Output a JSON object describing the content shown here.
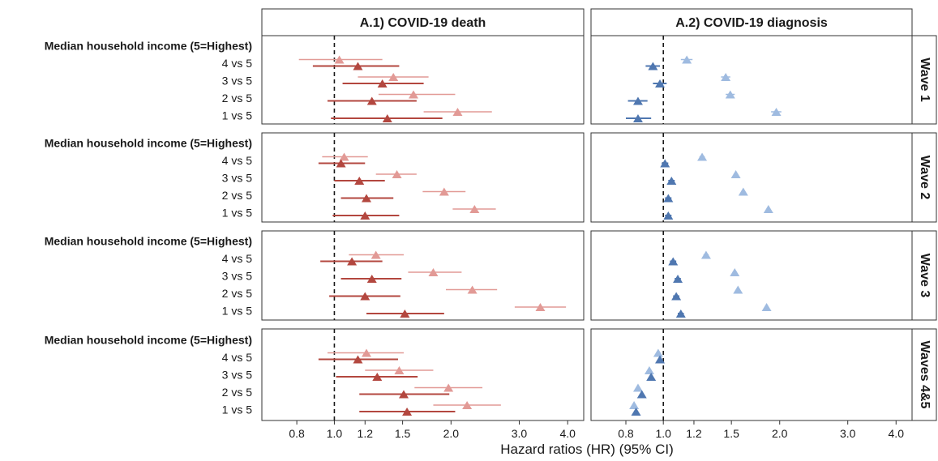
{
  "chart_data": {
    "type": "scatter",
    "subtype": "forest-plot",
    "xlabel": "Hazard ratios (HR) (95% CI)",
    "x_scale": "log",
    "xlim": [
      0.65,
      4.4
    ],
    "x_ticks": [
      0.8,
      1.0,
      1.2,
      1.5,
      2.0,
      3.0,
      4.0
    ],
    "x_tick_labels": [
      "0.8",
      "1.0",
      "1.2",
      "1.5",
      "2.0",
      "3.0",
      "4.0"
    ],
    "reference_line": 1.0,
    "grid": false,
    "legend": "none",
    "columns": [
      "A.1) COVID-19 death",
      "A.2) COVID-19 diagnosis"
    ],
    "rows": [
      "Wave 1",
      "Wave 2",
      "Wave 3",
      "Waves 4&5"
    ],
    "row_labels": [
      "Median household income (5=Highest)",
      "4 vs 5",
      "3 vs 5",
      "2 vs 5",
      "1 vs 5"
    ],
    "colors": {
      "death_light": "#e29a96",
      "death_dark": "#b3473f",
      "diagnosis_light": "#9fbbe0",
      "diagnosis_dark": "#4f77b0"
    },
    "panels": [
      {
        "column": "A.1) COVID-19 death",
        "row": "Wave 1",
        "series": [
          {
            "shade": "light",
            "points": [
              {
                "category": "4 vs 5",
                "hr": 1.03,
                "lo": 0.81,
                "hi": 1.33
              },
              {
                "category": "3 vs 5",
                "hr": 1.42,
                "lo": 1.15,
                "hi": 1.75
              },
              {
                "category": "2 vs 5",
                "hr": 1.6,
                "lo": 1.3,
                "hi": 2.05
              },
              {
                "category": "1 vs 5",
                "hr": 2.08,
                "lo": 1.7,
                "hi": 2.55
              }
            ]
          },
          {
            "shade": "dark",
            "points": [
              {
                "category": "4 vs 5",
                "hr": 1.15,
                "lo": 0.88,
                "hi": 1.47
              },
              {
                "category": "3 vs 5",
                "hr": 1.33,
                "lo": 1.05,
                "hi": 1.7
              },
              {
                "category": "2 vs 5",
                "hr": 1.25,
                "lo": 0.96,
                "hi": 1.63
              },
              {
                "category": "1 vs 5",
                "hr": 1.37,
                "lo": 0.98,
                "hi": 1.9
              }
            ]
          }
        ]
      },
      {
        "column": "A.2) COVID-19 diagnosis",
        "row": "Wave 1",
        "series": [
          {
            "shade": "light",
            "points": [
              {
                "category": "4 vs 5",
                "hr": 1.15,
                "lo": 1.11,
                "hi": 1.19
              },
              {
                "category": "3 vs 5",
                "hr": 1.45,
                "lo": 1.41,
                "hi": 1.49
              },
              {
                "category": "2 vs 5",
                "hr": 1.49,
                "lo": 1.45,
                "hi": 1.53
              },
              {
                "category": "1 vs 5",
                "hr": 1.96,
                "lo": 1.9,
                "hi": 2.02
              }
            ]
          },
          {
            "shade": "dark",
            "points": [
              {
                "category": "4 vs 5",
                "hr": 0.94,
                "lo": 0.9,
                "hi": 0.98
              },
              {
                "category": "3 vs 5",
                "hr": 0.98,
                "lo": 0.94,
                "hi": 1.02
              },
              {
                "category": "2 vs 5",
                "hr": 0.86,
                "lo": 0.81,
                "hi": 0.91
              },
              {
                "category": "1 vs 5",
                "hr": 0.86,
                "lo": 0.8,
                "hi": 0.93
              }
            ]
          }
        ]
      },
      {
        "column": "A.1) COVID-19 death",
        "row": "Wave 2",
        "series": [
          {
            "shade": "light",
            "points": [
              {
                "category": "4 vs 5",
                "hr": 1.06,
                "lo": 0.93,
                "hi": 1.22
              },
              {
                "category": "3 vs 5",
                "hr": 1.45,
                "lo": 1.28,
                "hi": 1.63
              },
              {
                "category": "2 vs 5",
                "hr": 1.92,
                "lo": 1.69,
                "hi": 2.18
              },
              {
                "category": "1 vs 5",
                "hr": 2.3,
                "lo": 2.02,
                "hi": 2.61
              }
            ]
          },
          {
            "shade": "dark",
            "points": [
              {
                "category": "4 vs 5",
                "hr": 1.04,
                "lo": 0.91,
                "hi": 1.2
              },
              {
                "category": "3 vs 5",
                "hr": 1.16,
                "lo": 1.0,
                "hi": 1.35
              },
              {
                "category": "2 vs 5",
                "hr": 1.21,
                "lo": 1.04,
                "hi": 1.42
              },
              {
                "category": "1 vs 5",
                "hr": 1.2,
                "lo": 0.99,
                "hi": 1.47
              }
            ]
          }
        ]
      },
      {
        "column": "A.2) COVID-19 diagnosis",
        "row": "Wave 2",
        "series": [
          {
            "shade": "light",
            "points": [
              {
                "category": "4 vs 5",
                "hr": 1.26,
                "lo": 1.24,
                "hi": 1.28
              },
              {
                "category": "3 vs 5",
                "hr": 1.54,
                "lo": 1.52,
                "hi": 1.56
              },
              {
                "category": "2 vs 5",
                "hr": 1.61,
                "lo": 1.59,
                "hi": 1.63
              },
              {
                "category": "1 vs 5",
                "hr": 1.87,
                "lo": 1.85,
                "hi": 1.89
              }
            ]
          },
          {
            "shade": "dark",
            "points": [
              {
                "category": "4 vs 5",
                "hr": 1.01,
                "lo": 0.99,
                "hi": 1.03
              },
              {
                "category": "3 vs 5",
                "hr": 1.05,
                "lo": 1.03,
                "hi": 1.07
              },
              {
                "category": "2 vs 5",
                "hr": 1.03,
                "lo": 1.01,
                "hi": 1.05
              },
              {
                "category": "1 vs 5",
                "hr": 1.03,
                "lo": 1.01,
                "hi": 1.05
              }
            ]
          }
        ]
      },
      {
        "column": "A.1) COVID-19 death",
        "row": "Wave 3",
        "series": [
          {
            "shade": "light",
            "points": [
              {
                "category": "4 vs 5",
                "hr": 1.28,
                "lo": 1.09,
                "hi": 1.51
              },
              {
                "category": "3 vs 5",
                "hr": 1.8,
                "lo": 1.55,
                "hi": 2.13
              },
              {
                "category": "2 vs 5",
                "hr": 2.27,
                "lo": 1.94,
                "hi": 2.63
              },
              {
                "category": "1 vs 5",
                "hr": 3.4,
                "lo": 2.92,
                "hi": 3.96
              }
            ]
          },
          {
            "shade": "dark",
            "points": [
              {
                "category": "4 vs 5",
                "hr": 1.11,
                "lo": 0.92,
                "hi": 1.33
              },
              {
                "category": "3 vs 5",
                "hr": 1.25,
                "lo": 1.04,
                "hi": 1.49
              },
              {
                "category": "2 vs 5",
                "hr": 1.2,
                "lo": 0.97,
                "hi": 1.48
              },
              {
                "category": "1 vs 5",
                "hr": 1.52,
                "lo": 1.21,
                "hi": 1.92
              }
            ]
          }
        ]
      },
      {
        "column": "A.2) COVID-19 diagnosis",
        "row": "Wave 3",
        "series": [
          {
            "shade": "light",
            "points": [
              {
                "category": "4 vs 5",
                "hr": 1.29,
                "lo": 1.27,
                "hi": 1.31
              },
              {
                "category": "3 vs 5",
                "hr": 1.53,
                "lo": 1.51,
                "hi": 1.55
              },
              {
                "category": "2 vs 5",
                "hr": 1.56,
                "lo": 1.54,
                "hi": 1.58
              },
              {
                "category": "1 vs 5",
                "hr": 1.85,
                "lo": 1.83,
                "hi": 1.87
              }
            ]
          },
          {
            "shade": "dark",
            "points": [
              {
                "category": "4 vs 5",
                "hr": 1.06,
                "lo": 1.04,
                "hi": 1.08
              },
              {
                "category": "3 vs 5",
                "hr": 1.09,
                "lo": 1.07,
                "hi": 1.11
              },
              {
                "category": "2 vs 5",
                "hr": 1.08,
                "lo": 1.06,
                "hi": 1.1
              },
              {
                "category": "1 vs 5",
                "hr": 1.11,
                "lo": 1.09,
                "hi": 1.13
              }
            ]
          }
        ]
      },
      {
        "column": "A.1) COVID-19 death",
        "row": "Waves 4&5",
        "series": [
          {
            "shade": "light",
            "points": [
              {
                "category": "4 vs 5",
                "hr": 1.21,
                "lo": 0.96,
                "hi": 1.51
              },
              {
                "category": "3 vs 5",
                "hr": 1.47,
                "lo": 1.2,
                "hi": 1.8
              },
              {
                "category": "2 vs 5",
                "hr": 1.97,
                "lo": 1.61,
                "hi": 2.41
              },
              {
                "category": "1 vs 5",
                "hr": 2.2,
                "lo": 1.8,
                "hi": 2.69
              }
            ]
          },
          {
            "shade": "dark",
            "points": [
              {
                "category": "4 vs 5",
                "hr": 1.15,
                "lo": 0.91,
                "hi": 1.46
              },
              {
                "category": "3 vs 5",
                "hr": 1.29,
                "lo": 1.01,
                "hi": 1.64
              },
              {
                "category": "2 vs 5",
                "hr": 1.51,
                "lo": 1.16,
                "hi": 1.98
              },
              {
                "category": "1 vs 5",
                "hr": 1.54,
                "lo": 1.16,
                "hi": 2.05
              }
            ]
          }
        ]
      },
      {
        "column": "A.2) COVID-19 diagnosis",
        "row": "Waves 4&5",
        "series": [
          {
            "shade": "light",
            "points": [
              {
                "category": "4 vs 5",
                "hr": 0.97,
                "lo": 0.96,
                "hi": 0.98
              },
              {
                "category": "3 vs 5",
                "hr": 0.92,
                "lo": 0.91,
                "hi": 0.93
              },
              {
                "category": "2 vs 5",
                "hr": 0.86,
                "lo": 0.85,
                "hi": 0.87
              },
              {
                "category": "1 vs 5",
                "hr": 0.84,
                "lo": 0.83,
                "hi": 0.85
              }
            ]
          },
          {
            "shade": "dark",
            "points": [
              {
                "category": "4 vs 5",
                "hr": 0.98,
                "lo": 0.97,
                "hi": 0.99
              },
              {
                "category": "3 vs 5",
                "hr": 0.93,
                "lo": 0.92,
                "hi": 0.94
              },
              {
                "category": "2 vs 5",
                "hr": 0.88,
                "lo": 0.87,
                "hi": 0.89
              },
              {
                "category": "1 vs 5",
                "hr": 0.85,
                "lo": 0.84,
                "hi": 0.86
              }
            ]
          }
        ]
      }
    ]
  }
}
